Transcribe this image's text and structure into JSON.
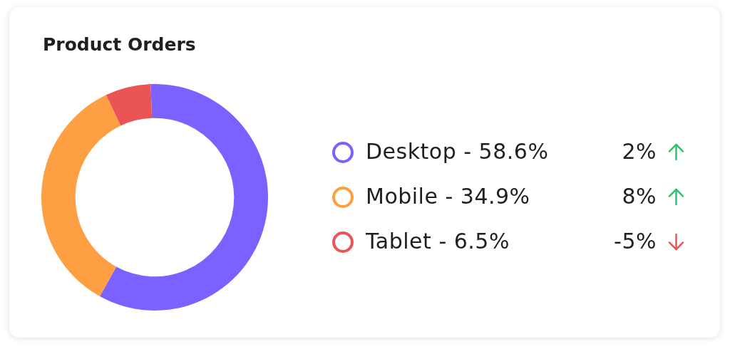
{
  "chart_data": {
    "type": "donut",
    "title": "Product Orders",
    "categories": [
      "Desktop",
      "Mobile",
      "Tablet"
    ],
    "values": [
      58.6,
      34.9,
      6.5
    ],
    "colors": [
      "#7b61ff",
      "#ff9f43",
      "#ea5455"
    ],
    "value_labels": [
      "58.6%",
      "34.9%",
      "6.5%"
    ],
    "annotations": [
      "2%",
      "8%",
      "-5%"
    ],
    "legend": "right"
  }
}
